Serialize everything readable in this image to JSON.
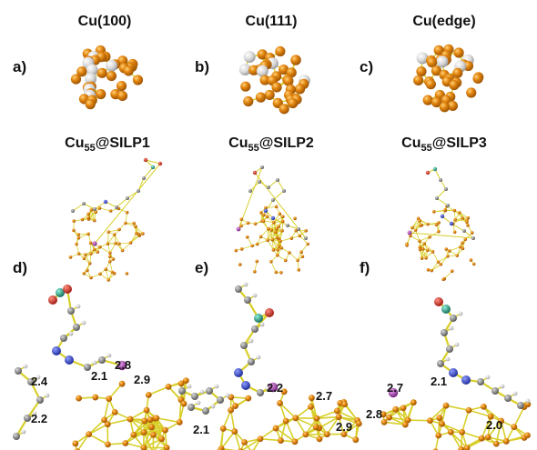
{
  "column_titles": [
    "Cu(100)",
    "Cu(111)",
    "Cu(edge)"
  ],
  "panel_letters": {
    "a": "a)",
    "b": "b)",
    "c": "c)",
    "d": "d)",
    "e": "e)",
    "f": "f)"
  },
  "model_titles": [
    {
      "pre": "Cu",
      "sub": "55",
      "post": "@SILP1"
    },
    {
      "pre": "Cu",
      "sub": "55",
      "post": "@SILP2"
    },
    {
      "pre": "Cu",
      "sub": "55",
      "post": "@SILP3"
    }
  ],
  "distance_labels": {
    "d": [
      "2.4",
      "2.1",
      "2.8",
      "2.9",
      "2.2"
    ],
    "e": [
      "2.2",
      "2.7",
      "2.1",
      "2.9"
    ],
    "f": [
      "2.7",
      "2.1",
      "2.8",
      "2.0"
    ]
  },
  "colors": {
    "copper": "#e2850f",
    "copper_shadow": "#a85b06",
    "silver": "#cfcfcf",
    "bond": "#d8cf2a",
    "hydrogen": "#e6e6e6",
    "carbon": "#8a8a8a",
    "nitrogen": "#2b3fc4",
    "oxygen": "#d42a1e",
    "silicon": "#1f8f7a",
    "iodine": "#a13aa8"
  }
}
